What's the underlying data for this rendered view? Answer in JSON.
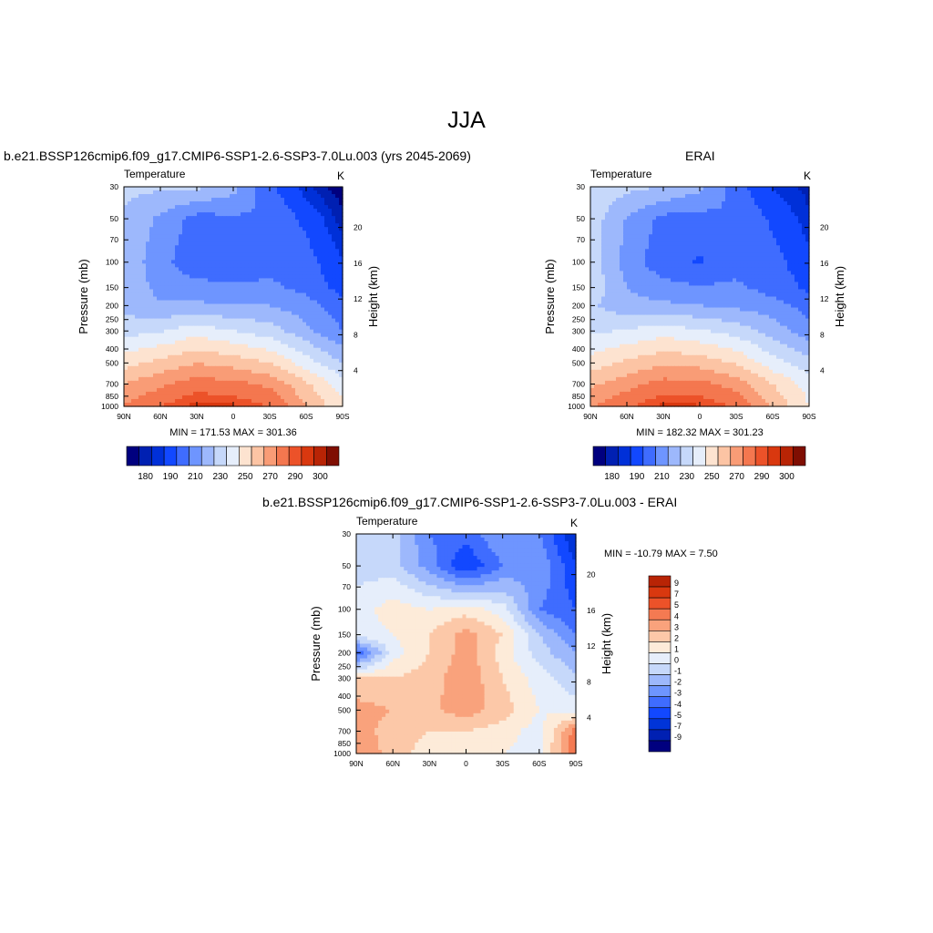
{
  "page": {
    "title": "JJA",
    "panel1_title": "b.e21.BSSP126cmip6.f09_g17.CMIP6-SSP1-2.6-SSP3-7.0Lu.003 (yrs 2045-2069)",
    "panel2_title": "ERAI",
    "panel3_title": "b.e21.BSSP126cmip6.f09_g17.CMIP6-SSP1-2.6-SSP3-7.0Lu.003 - ERAI"
  },
  "colors": {
    "abs_scale": [
      "#00007f",
      "#0020b2",
      "#0030d8",
      "#1248ff",
      "#3f6cff",
      "#6e95ff",
      "#9db8fc",
      "#c6d8fa",
      "#e6eefb",
      "#fde3d0",
      "#fcc4a4",
      "#f99c76",
      "#f4774f",
      "#ec5229",
      "#d9380f",
      "#b82405",
      "#7f0e02"
    ],
    "diff_scale": [
      "#00007f",
      "#0020b2",
      "#0034d8",
      "#1248ff",
      "#3f6cff",
      "#6e95ff",
      "#9db8fc",
      "#c6d8fa",
      "#e6eefb",
      "#fdebd9",
      "#fcc8a8",
      "#f9a27c",
      "#f47a52",
      "#ec5229",
      "#d9380f",
      "#b82405",
      "#7f0e02"
    ]
  },
  "chart_data": [
    {
      "type": "heatmap",
      "id": "model",
      "title": "Temperature",
      "units": "K",
      "ylabel": "Pressure (mb)",
      "ylabel_right": "Height (km)",
      "x_ticks": [
        "90N",
        "60N",
        "30N",
        "0",
        "30S",
        "60S",
        "90S"
      ],
      "y_ticks": [
        "30",
        "50",
        "70",
        "100",
        "150",
        "200",
        "250",
        "300",
        "400",
        "500",
        "700",
        "850",
        "1000"
      ],
      "y_ticks_right": [
        "20",
        "16",
        "12",
        "8",
        "4"
      ],
      "stats": "MIN = 171.53  MAX = 301.36",
      "min": 171.53,
      "max": 301.36,
      "colorbar_labels": [
        "180",
        "190",
        "210",
        "230",
        "250",
        "270",
        "290",
        "300"
      ],
      "colorbar_levels": [
        180,
        185,
        190,
        200,
        210,
        220,
        230,
        240,
        250,
        260,
        270,
        280,
        290,
        295,
        300,
        305
      ],
      "x": [
        -90,
        -60,
        -30,
        0,
        30,
        60,
        90
      ],
      "y_pressure": [
        30,
        50,
        100,
        150,
        200,
        300,
        500,
        700,
        1000
      ],
      "z": [
        [
          232,
          232,
          232,
          224,
          202,
          186,
          176
        ],
        [
          229,
          218,
          206,
          208,
          210,
          197,
          182
        ],
        [
          227,
          214,
          202,
          201,
          207,
          205,
          190
        ],
        [
          227,
          217,
          214,
          212,
          212,
          207,
          196
        ],
        [
          226,
          221,
          222,
          220,
          220,
          214,
          204
        ],
        [
          236,
          239,
          246,
          240,
          235,
          223,
          210
        ],
        [
          256,
          263,
          270,
          266,
          260,
          245,
          230
        ],
        [
          270,
          278,
          285,
          283,
          278,
          262,
          245
        ],
        [
          281,
          290,
          298,
          296,
          290,
          270,
          252
        ]
      ]
    },
    {
      "type": "heatmap",
      "id": "erai",
      "title": "Temperature",
      "units": "K",
      "ylabel": "Pressure (mb)",
      "ylabel_right": "Height (km)",
      "x_ticks": [
        "90N",
        "60N",
        "30N",
        "0",
        "30S",
        "60S",
        "90S"
      ],
      "y_ticks": [
        "30",
        "50",
        "70",
        "100",
        "150",
        "200",
        "250",
        "300",
        "400",
        "500",
        "700",
        "850",
        "1000"
      ],
      "y_ticks_right": [
        "20",
        "16",
        "12",
        "8",
        "4"
      ],
      "stats": "MIN = 182.32  MAX = 301.23",
      "min": 182.32,
      "max": 301.23,
      "colorbar_labels": [
        "180",
        "190",
        "210",
        "230",
        "250",
        "270",
        "290",
        "300"
      ],
      "colorbar_levels": [
        180,
        185,
        190,
        200,
        210,
        220,
        230,
        240,
        250,
        260,
        270,
        280,
        290,
        295,
        300,
        305
      ],
      "x": [
        -90,
        -60,
        -30,
        0,
        30,
        60,
        90
      ],
      "y_pressure": [
        30,
        50,
        100,
        150,
        200,
        300,
        500,
        700,
        1000
      ],
      "z": [
        [
          238,
          233,
          230,
          223,
          205,
          189,
          183
        ],
        [
          236,
          219,
          207,
          206,
          210,
          198,
          186
        ],
        [
          235,
          216,
          203,
          199,
          206,
          204,
          193
        ],
        [
          238,
          220,
          214,
          211,
          212,
          206,
          198
        ],
        [
          232,
          223,
          222,
          220,
          218,
          214,
          206
        ],
        [
          238,
          241,
          246,
          241,
          236,
          226,
          214
        ],
        [
          254,
          262,
          268,
          266,
          259,
          244,
          234
        ],
        [
          268,
          276,
          284,
          283,
          276,
          260,
          246
        ],
        [
          279,
          289,
          297,
          296,
          289,
          268,
          250
        ]
      ]
    },
    {
      "type": "heatmap",
      "id": "difference",
      "title": "Temperature",
      "units": "K",
      "ylabel": "Pressure (mb)",
      "ylabel_right": "Height (km)",
      "x_ticks": [
        "90N",
        "60N",
        "30N",
        "0",
        "30S",
        "60S",
        "90S"
      ],
      "y_ticks": [
        "30",
        "50",
        "70",
        "100",
        "150",
        "200",
        "250",
        "300",
        "400",
        "500",
        "700",
        "850",
        "1000"
      ],
      "y_ticks_right": [
        "20",
        "16",
        "12",
        "8",
        "4"
      ],
      "stats": "MIN = -10.79  MAX =   7.50",
      "min": -10.79,
      "max": 7.5,
      "colorbar_labels": [
        "9",
        "7",
        "5",
        "4",
        "3",
        "2",
        "1",
        "0",
        "-1",
        "-2",
        "-3",
        "-4",
        "-5",
        "-7",
        "-9"
      ],
      "colorbar_levels": [
        -9,
        -7,
        -5,
        -4,
        -3,
        -2,
        -1,
        0,
        1,
        2,
        3,
        4,
        5,
        7,
        9
      ],
      "x": [
        -90,
        -60,
        -30,
        0,
        30,
        60,
        90
      ],
      "y_pressure": [
        30,
        50,
        100,
        150,
        200,
        300,
        500,
        700,
        1000
      ],
      "z": [
        [
          -0.5,
          -0.5,
          -3,
          -3.5,
          -2,
          -3,
          -6
        ],
        [
          -0.5,
          -0.5,
          -2.5,
          -5,
          -3,
          -2,
          -5
        ],
        [
          0.5,
          1.5,
          1,
          1.5,
          0.5,
          -3,
          -4
        ],
        [
          0.5,
          1,
          2,
          3.5,
          2,
          -1,
          -3
        ],
        [
          -4,
          0.5,
          2,
          3.5,
          1.5,
          -0.5,
          -2
        ],
        [
          2,
          2,
          2.5,
          3.8,
          2,
          0.5,
          -0.8
        ],
        [
          3.5,
          3,
          2.8,
          3.5,
          2.5,
          1,
          0.5
        ],
        [
          3.5,
          2.5,
          2,
          2,
          1.5,
          0.5,
          4.5
        ],
        [
          4,
          2.5,
          1.5,
          1.5,
          1,
          0.5,
          5
        ]
      ]
    }
  ]
}
